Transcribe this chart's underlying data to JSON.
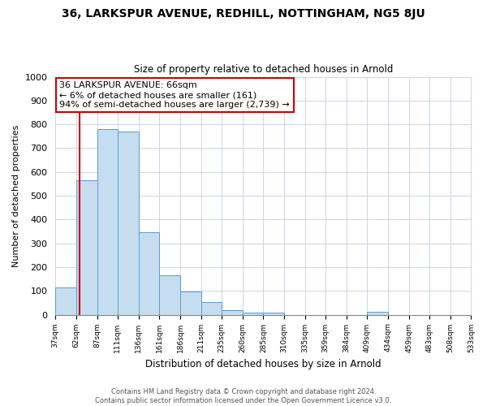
{
  "title_line1": "36, LARKSPUR AVENUE, REDHILL, NOTTINGHAM, NG5 8JU",
  "title_line2": "Size of property relative to detached houses in Arnold",
  "xlabel": "Distribution of detached houses by size in Arnold",
  "ylabel": "Number of detached properties",
  "bar_edges": [
    37,
    62,
    87,
    111,
    136,
    161,
    186,
    211,
    235,
    260,
    285,
    310,
    335,
    359,
    384,
    409,
    434,
    459,
    483,
    508,
    533
  ],
  "bar_heights": [
    115,
    565,
    780,
    770,
    348,
    165,
    98,
    52,
    18,
    8,
    8,
    0,
    0,
    0,
    0,
    12,
    0,
    0,
    0,
    0
  ],
  "bar_color": "#c6ddf0",
  "bar_edge_color": "#5b9bd5",
  "property_line_x": 66,
  "property_line_color": "#cc0000",
  "ylim": [
    0,
    1000
  ],
  "yticks": [
    0,
    100,
    200,
    300,
    400,
    500,
    600,
    700,
    800,
    900,
    1000
  ],
  "annotation_title": "36 LARKSPUR AVENUE: 66sqm",
  "annotation_line1": "← 6% of detached houses are smaller (161)",
  "annotation_line2": "94% of semi-detached houses are larger (2,739) →",
  "footer_line1": "Contains HM Land Registry data © Crown copyright and database right 2024.",
  "footer_line2": "Contains public sector information licensed under the Open Government Licence v3.0.",
  "tick_labels": [
    "37sqm",
    "62sqm",
    "87sqm",
    "111sqm",
    "136sqm",
    "161sqm",
    "186sqm",
    "211sqm",
    "235sqm",
    "260sqm",
    "285sqm",
    "310sqm",
    "335sqm",
    "359sqm",
    "384sqm",
    "409sqm",
    "434sqm",
    "459sqm",
    "483sqm",
    "508sqm",
    "533sqm"
  ]
}
